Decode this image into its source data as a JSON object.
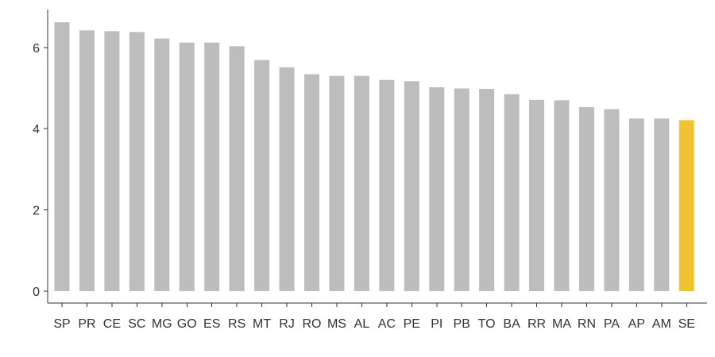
{
  "chart_data": {
    "type": "bar",
    "title": "",
    "xlabel": "",
    "ylabel": "",
    "categories": [
      "SP",
      "PR",
      "CE",
      "SC",
      "MG",
      "GO",
      "ES",
      "RS",
      "MT",
      "RJ",
      "RO",
      "MS",
      "AL",
      "AC",
      "PE",
      "PI",
      "PB",
      "TO",
      "BA",
      "RR",
      "MA",
      "RN",
      "PA",
      "AP",
      "AM",
      "SE"
    ],
    "values": [
      6.62,
      6.42,
      6.4,
      6.38,
      6.22,
      6.12,
      6.12,
      6.03,
      5.69,
      5.51,
      5.34,
      5.3,
      5.3,
      5.2,
      5.17,
      5.02,
      4.99,
      4.98,
      4.85,
      4.71,
      4.7,
      4.53,
      4.48,
      4.25,
      4.25,
      4.21
    ],
    "highlight": "SE",
    "ylim": [
      0,
      6.9
    ],
    "yticks": [
      0,
      2,
      4,
      6
    ],
    "grid": false,
    "legend": "none",
    "colors": {
      "bar": "#bdbdbd",
      "highlight": "#f0c330",
      "axis": "#333333"
    }
  }
}
